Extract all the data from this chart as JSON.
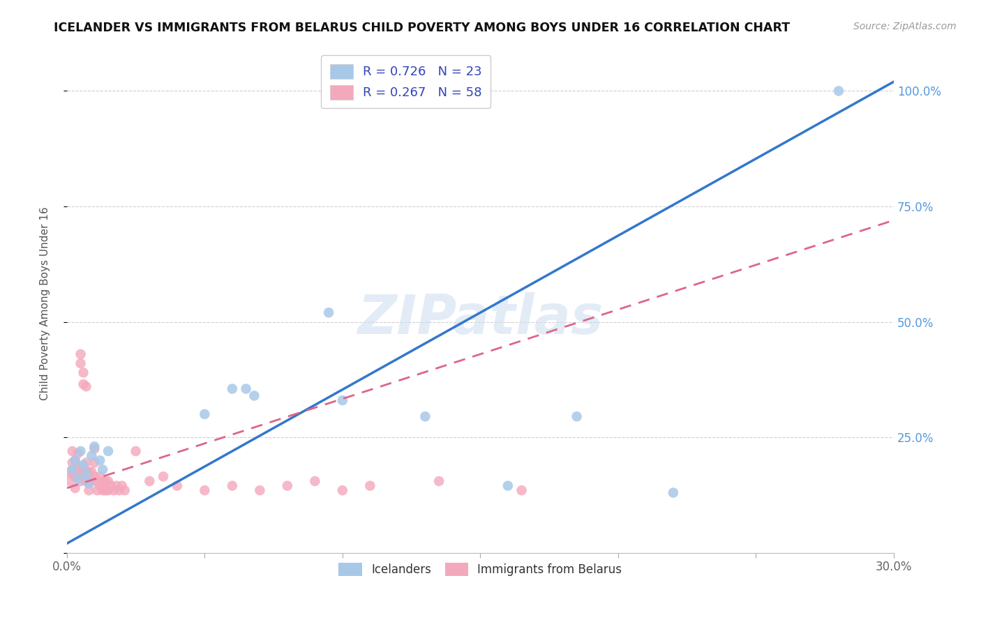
{
  "title": "ICELANDER VS IMMIGRANTS FROM BELARUS CHILD POVERTY AMONG BOYS UNDER 16 CORRELATION CHART",
  "source": "Source: ZipAtlas.com",
  "ylabel": "Child Poverty Among Boys Under 16",
  "watermark": "ZIPatlas",
  "xlim": [
    0.0,
    0.3
  ],
  "ylim": [
    0.0,
    1.08
  ],
  "ytick_vals": [
    0.0,
    0.25,
    0.5,
    0.75,
    1.0
  ],
  "xtick_vals": [
    0.0,
    0.05,
    0.1,
    0.15,
    0.2,
    0.25,
    0.3
  ],
  "grid_color": "#d0d0d0",
  "background_color": "#ffffff",
  "icelanders_color": "#a8c8e8",
  "immigrants_color": "#f4a8bc",
  "icelanders_line_color": "#3377cc",
  "immigrants_line_color": "#dd6688",
  "right_tick_color": "#5599dd",
  "legend_R_color": "#3344bb",
  "R_icelanders": 0.726,
  "N_icelanders": 23,
  "R_immigrants": 0.267,
  "N_immigrants": 58,
  "ice_line_x": [
    0.0,
    0.3
  ],
  "ice_line_y": [
    0.02,
    1.02
  ],
  "imm_line_x": [
    0.0,
    0.3
  ],
  "imm_line_y": [
    0.14,
    0.72
  ],
  "icelanders_x": [
    0.002,
    0.003,
    0.004,
    0.005,
    0.006,
    0.007,
    0.008,
    0.009,
    0.01,
    0.012,
    0.013,
    0.015,
    0.05,
    0.06,
    0.065,
    0.068,
    0.1,
    0.13,
    0.16,
    0.185,
    0.22,
    0.28,
    0.095
  ],
  "icelanders_y": [
    0.18,
    0.2,
    0.16,
    0.22,
    0.19,
    0.17,
    0.15,
    0.21,
    0.23,
    0.2,
    0.18,
    0.22,
    0.3,
    0.355,
    0.355,
    0.34,
    0.33,
    0.295,
    0.145,
    0.295,
    0.13,
    1.0,
    0.52
  ],
  "immigrants_x": [
    0.001,
    0.001,
    0.002,
    0.002,
    0.002,
    0.003,
    0.003,
    0.003,
    0.004,
    0.004,
    0.005,
    0.005,
    0.005,
    0.005,
    0.006,
    0.006,
    0.006,
    0.007,
    0.007,
    0.007,
    0.007,
    0.008,
    0.008,
    0.008,
    0.009,
    0.009,
    0.01,
    0.01,
    0.01,
    0.011,
    0.011,
    0.012,
    0.012,
    0.013,
    0.013,
    0.014,
    0.014,
    0.015,
    0.015,
    0.016,
    0.017,
    0.018,
    0.019,
    0.02,
    0.021,
    0.025,
    0.03,
    0.035,
    0.04,
    0.05,
    0.06,
    0.07,
    0.08,
    0.09,
    0.1,
    0.11,
    0.135,
    0.165
  ],
  "immigrants_y": [
    0.175,
    0.155,
    0.22,
    0.195,
    0.17,
    0.2,
    0.165,
    0.14,
    0.215,
    0.185,
    0.43,
    0.41,
    0.18,
    0.155,
    0.39,
    0.365,
    0.175,
    0.36,
    0.195,
    0.175,
    0.155,
    0.175,
    0.155,
    0.135,
    0.175,
    0.155,
    0.225,
    0.195,
    0.165,
    0.155,
    0.135,
    0.165,
    0.145,
    0.155,
    0.135,
    0.155,
    0.135,
    0.155,
    0.135,
    0.145,
    0.135,
    0.145,
    0.135,
    0.145,
    0.135,
    0.22,
    0.155,
    0.165,
    0.145,
    0.135,
    0.145,
    0.135,
    0.145,
    0.155,
    0.135,
    0.145,
    0.155,
    0.135
  ]
}
